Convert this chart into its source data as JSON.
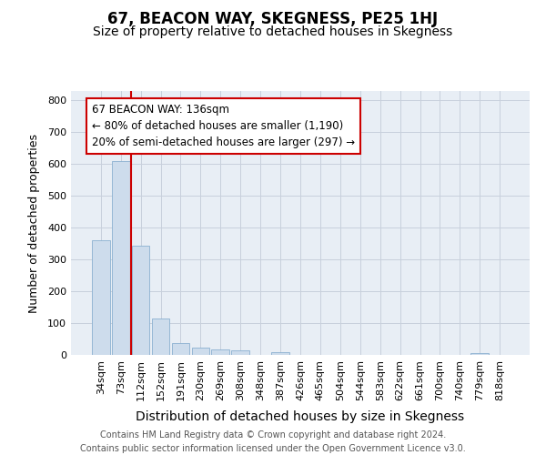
{
  "title": "67, BEACON WAY, SKEGNESS, PE25 1HJ",
  "subtitle": "Size of property relative to detached houses in Skegness",
  "xlabel": "Distribution of detached houses by size in Skegness",
  "ylabel": "Number of detached properties",
  "categories": [
    "34sqm",
    "73sqm",
    "112sqm",
    "152sqm",
    "191sqm",
    "230sqm",
    "269sqm",
    "308sqm",
    "348sqm",
    "387sqm",
    "426sqm",
    "465sqm",
    "504sqm",
    "544sqm",
    "583sqm",
    "622sqm",
    "661sqm",
    "700sqm",
    "740sqm",
    "779sqm",
    "818sqm"
  ],
  "values": [
    360,
    610,
    343,
    115,
    38,
    22,
    17,
    13,
    0,
    8,
    0,
    0,
    0,
    0,
    0,
    0,
    0,
    0,
    0,
    7,
    0
  ],
  "bar_color": "#cddcec",
  "bar_edge_color": "#8ab0d0",
  "vline_color": "#cc0000",
  "vline_x": 1.5,
  "annotation_line1": "67 BEACON WAY: 136sqm",
  "annotation_line2": "← 80% of detached houses are smaller (1,190)",
  "annotation_line3": "20% of semi-detached houses are larger (297) →",
  "annotation_box_edge_color": "#cc0000",
  "ylim_max": 830,
  "yticks": [
    0,
    100,
    200,
    300,
    400,
    500,
    600,
    700,
    800
  ],
  "fig_bg_color": "#ffffff",
  "axes_bg_color": "#e8eef5",
  "grid_color": "#c8d0dc",
  "footer": "Contains HM Land Registry data © Crown copyright and database right 2024.\nContains public sector information licensed under the Open Government Licence v3.0.",
  "title_fontsize": 12,
  "subtitle_fontsize": 10,
  "xlabel_fontsize": 10,
  "ylabel_fontsize": 9,
  "tick_fontsize": 8,
  "annotation_fontsize": 8.5,
  "footer_fontsize": 7
}
